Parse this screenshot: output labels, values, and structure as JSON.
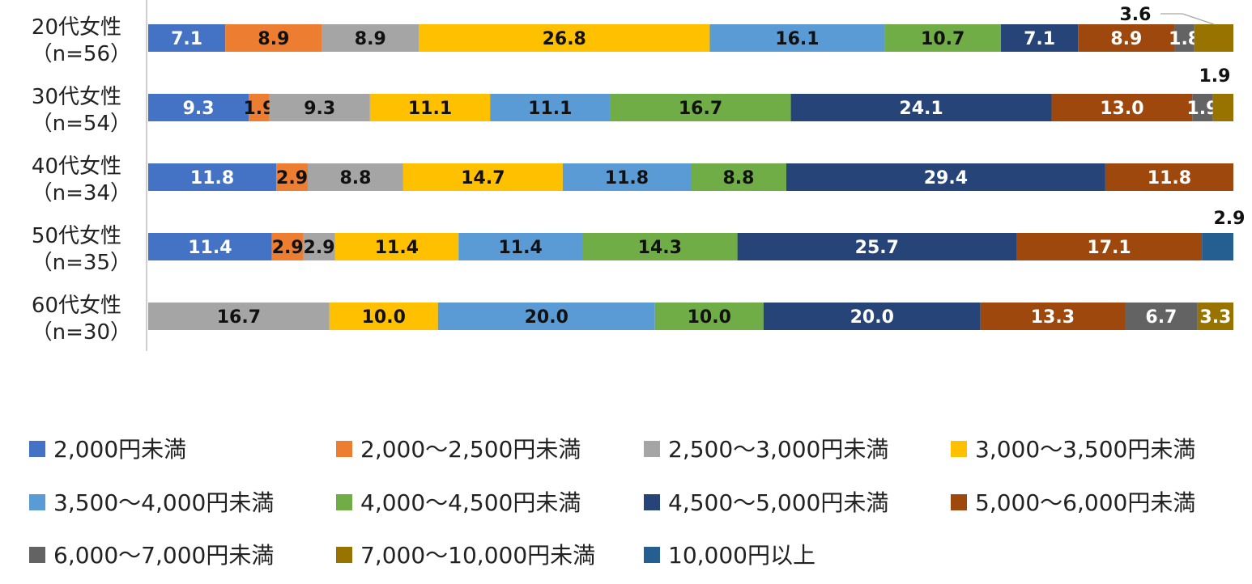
{
  "chart_data": {
    "type": "bar",
    "orientation": "horizontal",
    "stacked": true,
    "percent_stacked": true,
    "categories": [
      {
        "label": "20代女性",
        "n": "（n=56）"
      },
      {
        "label": "30代女性",
        "n": "（n=54）"
      },
      {
        "label": "40代女性",
        "n": "（n=34）"
      },
      {
        "label": "50代女性",
        "n": "（n=35）"
      },
      {
        "label": "60代女性",
        "n": "（n=30）"
      }
    ],
    "series": [
      {
        "name": "2,000円未満",
        "color": "#4472C4",
        "label_color": "#ffffff",
        "values": [
          7.1,
          9.3,
          11.8,
          11.4,
          0
        ]
      },
      {
        "name": "2,000～2,500円未満",
        "color": "#ED7D31",
        "label_color": "#111111",
        "values": [
          8.9,
          1.9,
          2.9,
          2.9,
          0
        ]
      },
      {
        "name": "2,500～3,000円未満",
        "color": "#A5A5A5",
        "label_color": "#111111",
        "values": [
          8.9,
          9.3,
          8.8,
          2.9,
          16.7
        ]
      },
      {
        "name": "3,000～3,500円未満",
        "color": "#FFC000",
        "label_color": "#111111",
        "values": [
          26.8,
          11.1,
          14.7,
          11.4,
          10.0
        ]
      },
      {
        "name": "3,500～4,000円未満",
        "color": "#5B9BD5",
        "label_color": "#111111",
        "values": [
          16.1,
          11.1,
          11.8,
          11.4,
          20.0
        ]
      },
      {
        "name": "4,000～4,500円未満",
        "color": "#70AD47",
        "label_color": "#111111",
        "values": [
          10.7,
          16.7,
          8.8,
          14.3,
          10.0
        ]
      },
      {
        "name": "4,500～5,000円未満",
        "color": "#264478",
        "label_color": "#ffffff",
        "values": [
          7.1,
          24.1,
          29.4,
          25.7,
          20.0
        ]
      },
      {
        "name": "5,000～6,000円未満",
        "color": "#9E480E",
        "label_color": "#ffffff",
        "values": [
          8.9,
          13.0,
          11.8,
          17.1,
          13.3
        ]
      },
      {
        "name": "6,000～7,000円未満",
        "color": "#636363",
        "label_color": "#ffffff",
        "values": [
          1.8,
          1.9,
          0,
          0,
          6.7
        ]
      },
      {
        "name": "7,000～10,000円未満",
        "color": "#997300",
        "label_color": "#ffffff",
        "values": [
          3.6,
          1.9,
          0,
          0,
          3.3
        ]
      },
      {
        "name": "10,000円以上",
        "color": "#255E91",
        "label_color": "#ffffff",
        "values": [
          0,
          0,
          0,
          2.9,
          0
        ]
      }
    ],
    "outside_labels": [
      {
        "category": 0,
        "series": 9,
        "text": "3.6"
      },
      {
        "category": 1,
        "series": 9,
        "text": "1.9"
      },
      {
        "category": 3,
        "series": 10,
        "text": "2.9"
      }
    ],
    "xlim": [
      0,
      100
    ],
    "legend_position": "bottom",
    "grid": false
  }
}
